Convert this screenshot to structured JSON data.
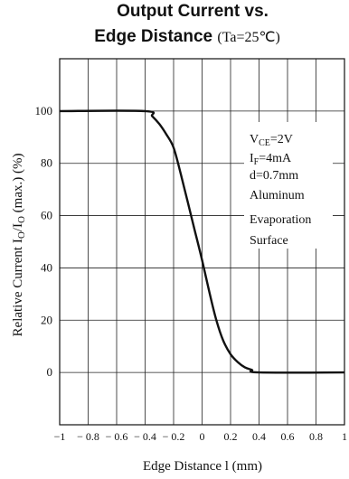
{
  "title_line1": "Output Current vs.",
  "title_line2": "Edge Distance",
  "title_condition": "(Ta=25℃)",
  "chart_data": {
    "type": "line",
    "title": "Output Current vs. Edge Distance (Ta=25℃)",
    "xlabel": "Edge Distance l (mm)",
    "ylabel": "Relative Current IO/IO (max.) (%)",
    "xlim": [
      -1,
      1
    ],
    "ylim": [
      -20,
      120
    ],
    "x_ticks": [
      -1,
      -0.8,
      -0.6,
      -0.4,
      -0.2,
      0,
      0.2,
      0.4,
      0.6,
      0.8,
      1
    ],
    "x_tick_labels": [
      "−1",
      "− 0.8",
      "− 0.6",
      "− 0.4",
      "− 0.2",
      "0",
      "0.2",
      "0.4",
      "0.6",
      "0.8",
      "1"
    ],
    "y_ticks": [
      0,
      20,
      40,
      60,
      80,
      100
    ],
    "y_tick_labels": [
      "0",
      "20",
      "40",
      "60",
      "80",
      "100"
    ],
    "grid": true,
    "series": [
      {
        "x": [
          -1,
          -0.4,
          -0.35,
          -0.3,
          -0.25,
          -0.2,
          -0.15,
          -0.1,
          -0.05,
          0,
          0.05,
          0.1,
          0.15,
          0.2,
          0.25,
          0.3,
          0.35,
          0.4,
          1
        ],
        "y": [
          100,
          100,
          98,
          95,
          91,
          86,
          76,
          65,
          54,
          43,
          31,
          20,
          12,
          7,
          4,
          2,
          1,
          0,
          0
        ]
      }
    ],
    "annotations": [
      "VCE=2V",
      "IF=4mA",
      "d=0.7mm",
      "Aluminum",
      "Evaporation",
      "Surface"
    ]
  }
}
